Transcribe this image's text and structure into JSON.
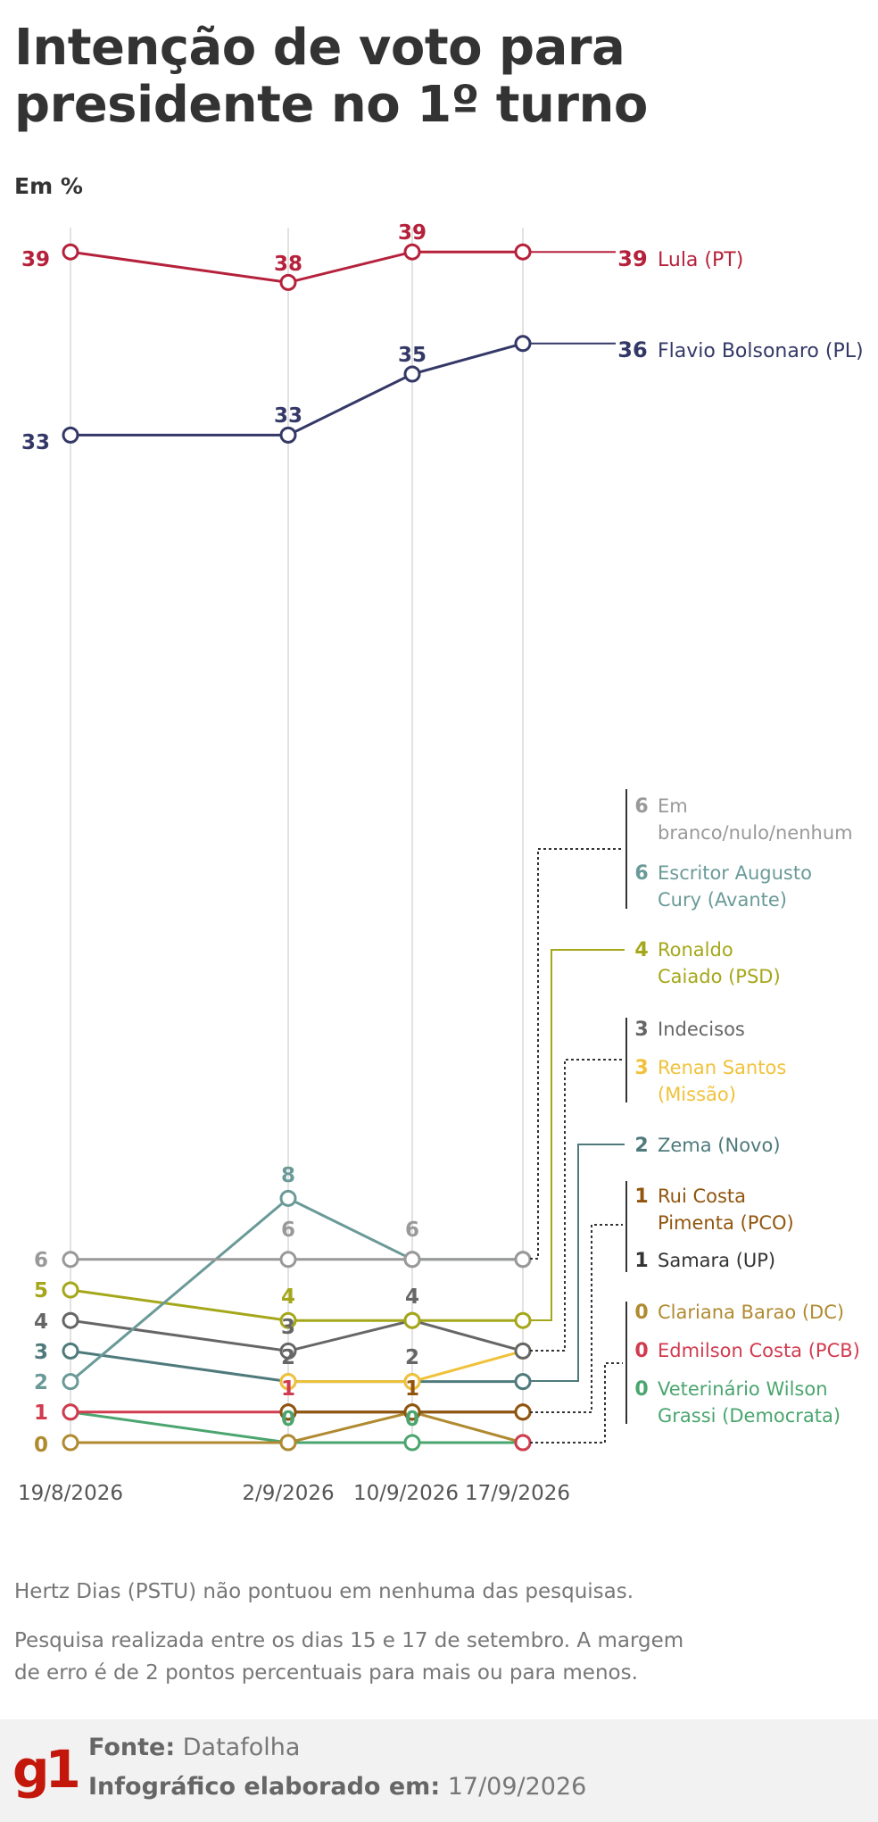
{
  "header": {
    "title_line1": "Intenção de voto para",
    "title_line2": "presidente no 1º turno",
    "unit": "Em %"
  },
  "chart_data": {
    "type": "line",
    "title": "Intenção de voto para presidente no 1º turno",
    "ylabel": "Em %",
    "x": [
      "19/8/2026",
      "2/9/2026",
      "10/9/2026",
      "17/9/2026"
    ],
    "series": [
      {
        "name": "Lula (PT)",
        "color": "#b5213b",
        "values": [
          39,
          38,
          39,
          39
        ]
      },
      {
        "name": "Flavio Bolsonaro (PL)",
        "color": "#343867",
        "values": [
          33,
          33,
          35,
          36
        ]
      },
      {
        "name": "Em branco/nulo/nenhum",
        "color": "#999999",
        "values": [
          6,
          6,
          6,
          6
        ]
      },
      {
        "name": "Escritor Augusto Cury (Avante)",
        "color": "#6a9a98",
        "values": [
          2,
          8,
          6,
          6
        ]
      },
      {
        "name": "Ronaldo Caiado (PSD)",
        "color": "#a5a71a",
        "values": [
          5,
          4,
          4,
          4
        ]
      },
      {
        "name": "Indecisos",
        "color": "#666666",
        "values": [
          4,
          3,
          4,
          3
        ]
      },
      {
        "name": "Renan Santos (Missão)",
        "color": "#f0c23a",
        "values": [
          null,
          2,
          2,
          3
        ]
      },
      {
        "name": "Zema (Novo)",
        "color": "#4f7a7c",
        "values": [
          3,
          2,
          2,
          2
        ]
      },
      {
        "name": "Rui Costa Pimenta (PCO)",
        "color": "#91550e",
        "values": [
          null,
          1,
          1,
          1
        ]
      },
      {
        "name": "Samara (UP)",
        "color": "#333333",
        "values": [
          null,
          1,
          1,
          1
        ]
      },
      {
        "name": "Clariana Barao (DC)",
        "color": "#b08a30",
        "values": [
          0,
          0,
          1,
          0
        ]
      },
      {
        "name": "Edmilson Costa (PCB)",
        "color": "#d13b4f",
        "values": [
          1,
          1,
          null,
          0
        ]
      },
      {
        "name": "Veterinário Wilson Grassi (Democrata)",
        "color": "#4aa56e",
        "values": [
          1,
          0,
          0,
          0
        ]
      }
    ],
    "point_labels": [
      {
        "text": "39",
        "color": "#b5213b",
        "series": 0,
        "point": 0
      },
      {
        "text": "38",
        "color": "#b5213b",
        "series": 0,
        "point": 1
      },
      {
        "text": "39",
        "color": "#b5213b",
        "series": 0,
        "point": 2
      },
      {
        "text": "33",
        "color": "#343867",
        "series": 1,
        "point": 0
      },
      {
        "text": "33",
        "color": "#343867",
        "series": 1,
        "point": 1
      },
      {
        "text": "35",
        "color": "#343867",
        "series": 1,
        "point": 2
      },
      {
        "text": "6",
        "color": "#999999",
        "series": 2,
        "point": 0
      },
      {
        "text": "6",
        "color": "#999999",
        "series": 2,
        "point": 1
      },
      {
        "text": "6",
        "color": "#999999",
        "series": 2,
        "point": 2
      },
      {
        "text": "8",
        "color": "#6a9a98",
        "series": 3,
        "point": 1
      },
      {
        "text": "2",
        "color": "#6a9a98",
        "series": 3,
        "point": 0
      },
      {
        "text": "5",
        "color": "#a5a71a",
        "series": 4,
        "point": 0
      },
      {
        "text": "4",
        "color": "#a5a71a",
        "series": 4,
        "point": 1
      },
      {
        "text": "4",
        "color": "#666666",
        "series": 5,
        "point": 0
      },
      {
        "text": "3",
        "color": "#666666",
        "series": 5,
        "point": 1
      },
      {
        "text": "4",
        "color": "#666666",
        "series": 5,
        "point": 2
      },
      {
        "text": "2",
        "color": "#666666",
        "series": 6,
        "point": 1
      },
      {
        "text": "2",
        "color": "#666666",
        "series": 6,
        "point": 2
      },
      {
        "text": "3",
        "color": "#4f7a7c",
        "series": 7,
        "point": 0
      },
      {
        "text": "1",
        "color": "#d13b4f",
        "series": 11,
        "point": 0
      },
      {
        "text": "1",
        "color": "#d13b4f",
        "series": 11,
        "point": 1
      },
      {
        "text": "1",
        "color": "#91550e",
        "series": 8,
        "point": 2
      },
      {
        "text": "0",
        "color": "#b08a30",
        "series": 10,
        "point": 0
      },
      {
        "text": "0",
        "color": "#4aa56e",
        "series": 12,
        "point": 1
      },
      {
        "text": "0",
        "color": "#4aa56e",
        "series": 12,
        "point": 2
      }
    ],
    "end_labels": [
      {
        "value": "39",
        "name": "Lula (PT)",
        "color": "#b5213b"
      },
      {
        "value": "36",
        "name": "Flavio Bolsonaro (PL)",
        "color": "#343867"
      },
      {
        "value": "6",
        "name": "Em branco/nulo/nenhum",
        "color": "#999999",
        "lines": [
          "Em",
          "branco/nulo/nenhum"
        ]
      },
      {
        "value": "6",
        "name": "Escritor Augusto Cury (Avante)",
        "color": "#6a9a98",
        "lines": [
          "Escritor Augusto",
          "Cury (Avante)"
        ]
      },
      {
        "value": "4",
        "name": "Ronaldo Caiado (PSD)",
        "color": "#a5a71a",
        "lines": [
          "Ronaldo",
          "Caiado (PSD)"
        ]
      },
      {
        "value": "3",
        "name": "Indecisos",
        "color": "#666666",
        "lines": [
          "Indecisos"
        ]
      },
      {
        "value": "3",
        "name": "Renan Santos (Missão)",
        "color": "#f0c23a",
        "lines": [
          "Renan Santos",
          "(Missão)"
        ]
      },
      {
        "value": "2",
        "name": "Zema (Novo)",
        "color": "#4f7a7c",
        "lines": [
          "Zema (Novo)"
        ]
      },
      {
        "value": "1",
        "name": "Rui Costa Pimenta (PCO)",
        "color": "#91550e",
        "lines": [
          "Rui Costa",
          "Pimenta (PCO)"
        ]
      },
      {
        "value": "1",
        "name": "Samara (UP)",
        "color": "#333333",
        "lines": [
          "Samara (UP)"
        ]
      },
      {
        "value": "0",
        "name": "Clariana Barao (DC)",
        "color": "#b08a30",
        "lines": [
          "Clariana Barao (DC)"
        ]
      },
      {
        "value": "0",
        "name": "Edmilson Costa (PCB)",
        "color": "#d13b4f",
        "lines": [
          "Edmilson Costa (PCB)"
        ]
      },
      {
        "value": "0",
        "name": "Veterinário Wilson Grassi (Democrata)",
        "color": "#4aa56e",
        "lines": [
          "Veterinário Wilson",
          "Grassi (Democrata)"
        ]
      }
    ]
  },
  "notes": {
    "note1": "Hertz Dias (PSTU) não pontuou em nenhuma das pesquisas.",
    "note2_line1": "Pesquisa realizada entre os dias 15 e 17 de setembro. A margem",
    "note2_line2": "de erro é de 2 pontos percentuais para mais ou para menos."
  },
  "footer": {
    "logo": "g1",
    "source_label": "Fonte:",
    "source_value": "Datafolha",
    "made_label": "Infográfico elaborado em:",
    "made_value": "17/09/2026"
  }
}
